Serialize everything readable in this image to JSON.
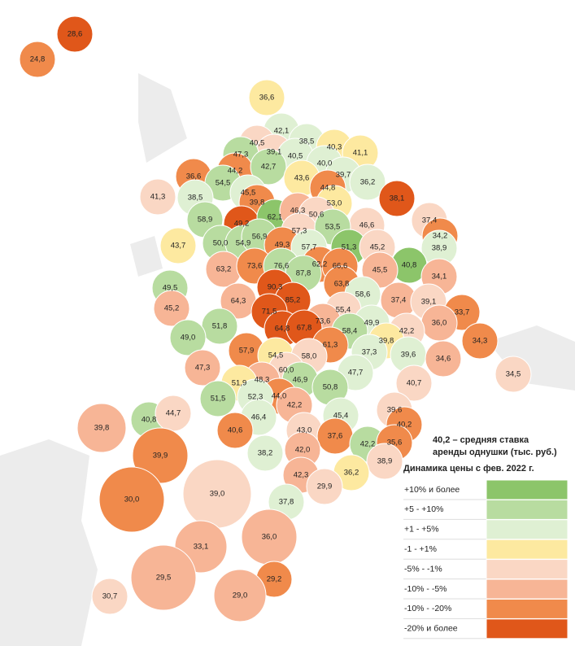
{
  "regions": [
    {
      "label": "28,6",
      "change": 7
    },
    {
      "label": "24,8",
      "change": 6
    },
    {
      "label": "36,6",
      "change": 3
    },
    {
      "label": "42,1",
      "change": 2
    },
    {
      "label": "38,5",
      "change": 2
    },
    {
      "label": "40,5",
      "change": 4
    },
    {
      "label": "39,1",
      "change": 4
    },
    {
      "label": "40,3",
      "change": 3
    },
    {
      "label": "47,3",
      "change": 1
    },
    {
      "label": "41,1",
      "change": 3
    },
    {
      "label": "40,5",
      "change": 2
    },
    {
      "label": "44,2",
      "change": 6
    },
    {
      "label": "42,7",
      "change": 1
    },
    {
      "label": "40,0",
      "change": 2
    },
    {
      "label": "36,6",
      "change": 6
    },
    {
      "label": "54,5",
      "change": 1
    },
    {
      "label": "43,6",
      "change": 3
    },
    {
      "label": "39,7",
      "change": 2
    },
    {
      "label": "36,2",
      "change": 2
    },
    {
      "label": "38,1",
      "change": 7
    },
    {
      "label": "41,3",
      "change": 4
    },
    {
      "label": "38,5",
      "change": 2
    },
    {
      "label": "45,5",
      "change": 2
    },
    {
      "label": "44,8",
      "change": 6
    },
    {
      "label": "39,8",
      "change": 6
    },
    {
      "label": "53,0",
      "change": 3
    },
    {
      "label": "58,9",
      "change": 1
    },
    {
      "label": "49,2",
      "change": 7
    },
    {
      "label": "62,1",
      "change": 0
    },
    {
      "label": "46,3",
      "change": 5
    },
    {
      "label": "50,6",
      "change": 4
    },
    {
      "label": "46,6",
      "change": 4
    },
    {
      "label": "37,4",
      "change": 4
    },
    {
      "label": "57,3",
      "change": 4
    },
    {
      "label": "53,5",
      "change": 1
    },
    {
      "label": "34,2",
      "change": 6
    },
    {
      "label": "43,7",
      "change": 3
    },
    {
      "label": "50,0",
      "change": 1
    },
    {
      "label": "54,9",
      "change": 1
    },
    {
      "label": "56,9",
      "change": 1
    },
    {
      "label": "51,3",
      "change": 0
    },
    {
      "label": "45,2",
      "change": 4
    },
    {
      "label": "38,9",
      "change": 2
    },
    {
      "label": "49,3",
      "change": 6
    },
    {
      "label": "57,7",
      "change": 2
    },
    {
      "label": "63,2",
      "change": 5
    },
    {
      "label": "73,6",
      "change": 6
    },
    {
      "label": "76,6",
      "change": 1
    },
    {
      "label": "62,2",
      "change": 6
    },
    {
      "label": "66,6",
      "change": 6
    },
    {
      "label": "40,8",
      "change": 0
    },
    {
      "label": "87,8",
      "change": 1
    },
    {
      "label": "45,5",
      "change": 5
    },
    {
      "label": "34,1",
      "change": 5
    },
    {
      "label": "49,5",
      "change": 1
    },
    {
      "label": "63,8",
      "change": 6
    },
    {
      "label": "90,3",
      "change": 7
    },
    {
      "label": "58,6",
      "change": 2
    },
    {
      "label": "85,2",
      "change": 7
    },
    {
      "label": "64,3",
      "change": 5
    },
    {
      "label": "45,2",
      "change": 5
    },
    {
      "label": "37,4",
      "change": 5
    },
    {
      "label": "39,1",
      "change": 4
    },
    {
      "label": "55,4",
      "change": 4
    },
    {
      "label": "71,5",
      "change": 7
    },
    {
      "label": "33,7",
      "change": 6
    },
    {
      "label": "51,8",
      "change": 1
    },
    {
      "label": "73,6",
      "change": 5
    },
    {
      "label": "49,9",
      "change": 2
    },
    {
      "label": "36,0",
      "change": 5
    },
    {
      "label": "64,8",
      "change": 7
    },
    {
      "label": "67,8",
      "change": 7
    },
    {
      "label": "58,4",
      "change": 1
    },
    {
      "label": "42,2",
      "change": 4
    },
    {
      "label": "34,3",
      "change": 6
    },
    {
      "label": "49,0",
      "change": 1
    },
    {
      "label": "39,8",
      "change": 3
    },
    {
      "label": "61,3",
      "change": 6
    },
    {
      "label": "57,9",
      "change": 6
    },
    {
      "label": "54,5",
      "change": 3
    },
    {
      "label": "58,0",
      "change": 4
    },
    {
      "label": "37,3",
      "change": 2
    },
    {
      "label": "39,6",
      "change": 2
    },
    {
      "label": "34,6",
      "change": 5
    },
    {
      "label": "47,3",
      "change": 5
    },
    {
      "label": "60,0",
      "change": 4
    },
    {
      "label": "47,7",
      "change": 2
    },
    {
      "label": "34,5",
      "change": 4
    },
    {
      "label": "48,3",
      "change": 5
    },
    {
      "label": "46,9",
      "change": 1
    },
    {
      "label": "40,7",
      "change": 4
    },
    {
      "label": "51,9",
      "change": 3
    },
    {
      "label": "44,0",
      "change": 6
    },
    {
      "label": "50,8",
      "change": 1
    },
    {
      "label": "52,3",
      "change": 2
    },
    {
      "label": "40,8",
      "change": 1
    },
    {
      "label": "44,7",
      "change": 4
    },
    {
      "label": "51,5",
      "change": 1
    },
    {
      "label": "42,2",
      "change": 5
    },
    {
      "label": "39,6",
      "change": 4
    },
    {
      "label": "46,4",
      "change": 2
    },
    {
      "label": "45,4",
      "change": 2
    },
    {
      "label": "39,8",
      "change": 5
    },
    {
      "label": "40,6",
      "change": 6
    },
    {
      "label": "43,0",
      "change": 4
    },
    {
      "label": "40,2",
      "change": 6
    },
    {
      "label": "37,6",
      "change": 6
    },
    {
      "label": "42,2",
      "change": 1
    },
    {
      "label": "35,6",
      "change": 6
    },
    {
      "label": "38,2",
      "change": 2
    },
    {
      "label": "42,0",
      "change": 5
    },
    {
      "label": "38,9",
      "change": 4
    },
    {
      "label": "39,9",
      "change": 6
    },
    {
      "label": "42,3",
      "change": 5
    },
    {
      "label": "36,2",
      "change": 3
    },
    {
      "label": "29,9",
      "change": 4
    },
    {
      "label": "39,0",
      "change": 4
    },
    {
      "label": "30,0",
      "change": 6
    },
    {
      "label": "37,8",
      "change": 2
    },
    {
      "label": "36,0",
      "change": 5
    },
    {
      "label": "33,1",
      "change": 5
    },
    {
      "label": "29,5",
      "change": 5
    },
    {
      "label": "29,2",
      "change": 6
    },
    {
      "label": "29,0",
      "change": 5
    },
    {
      "label": "30,7",
      "change": 4
    }
  ],
  "legend": {
    "title": [
      "40,2 – средняя ставка",
      "аренды однушки (тыс. руб.)"
    ],
    "subtitle": "Динамика цены с фев. 2022 г.",
    "items": [
      {
        "label": "+10% и более",
        "color": "#8cc56a"
      },
      {
        "label": "+5 - +10%",
        "color": "#b8dca0"
      },
      {
        "label": "+1 - +5%",
        "color": "#dff0d3"
      },
      {
        "label": "-1 - +1%",
        "color": "#fde9a0"
      },
      {
        "label": "-5% - -1%",
        "color": "#fad7c4"
      },
      {
        "label": "-10% - -5%",
        "color": "#f7b596"
      },
      {
        "label": "-10% - -20%",
        "color": "#f08a4b"
      },
      {
        "label": "-20% и более",
        "color": "#e0571a"
      }
    ]
  }
}
